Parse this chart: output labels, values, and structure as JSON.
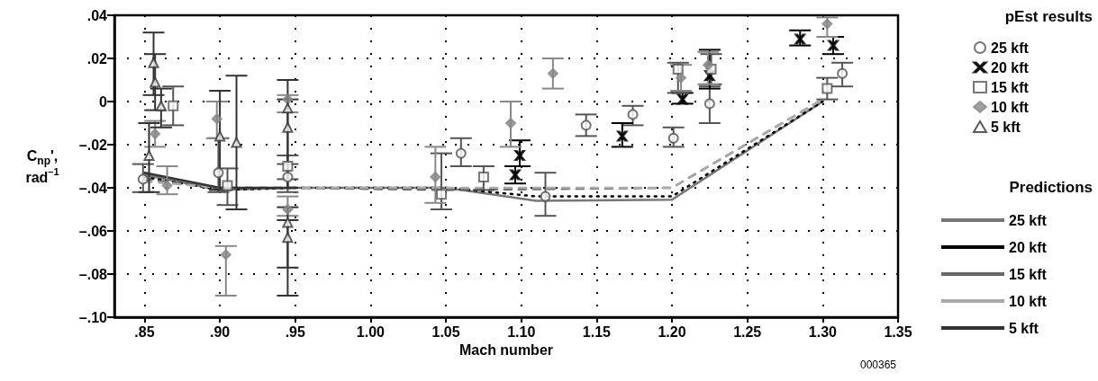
{
  "chart_data": {
    "type": "scatter",
    "xlabel": "Mach number",
    "ylabel": "C$_{np}$', rad$^{–1}$",
    "legend_title": "pEst results",
    "annotations": [
      "Predictions",
      "000365"
    ],
    "xlim": [
      0.83,
      1.35
    ],
    "ylim": [
      -0.1,
      0.04
    ],
    "xticks": [
      {
        "value": 0.85,
        "label": ".85"
      },
      {
        "value": 0.9,
        "label": ".90"
      },
      {
        "value": 0.95,
        "label": ".95"
      },
      {
        "value": 1,
        "label": "1.00"
      },
      {
        "value": 1.05,
        "label": "1.05"
      },
      {
        "value": 1.1,
        "label": "1.10"
      },
      {
        "value": 1.15,
        "label": "1.15"
      },
      {
        "value": 1.2,
        "label": "1.20"
      },
      {
        "value": 1.25,
        "label": "1.25"
      },
      {
        "value": 1.3,
        "label": "1.30"
      },
      {
        "value": 1.35,
        "label": "1.35"
      }
    ],
    "yticks": [
      {
        "value": 0.04,
        "label": ".04"
      },
      {
        "value": 0.02,
        "label": ".02"
      },
      0,
      {
        "value": -0.02,
        "label": "–.02"
      },
      {
        "value": -0.04,
        "label": "–.04"
      },
      {
        "value": -0.06,
        "label": "–.06"
      },
      {
        "value": -0.08,
        "label": "–.08"
      },
      {
        "value": -0.1,
        "label": "–.10"
      }
    ],
    "grid": true,
    "legend": "right",
    "series": [
      {
        "name": "25 kft",
        "type": "scatter",
        "marker": "circle",
        "color": "#555555",
        "x": [
          0.849,
          0.899,
          0.945,
          1.06,
          1.116,
          1.143,
          1.174,
          1.201,
          1.225,
          1.313
        ],
        "values": [
          -0.036,
          -0.033,
          -0.035,
          -0.024,
          -0.044,
          -0.011,
          -0.006,
          -0.017,
          -0.001,
          0.013
        ],
        "errors": [
          [
            -0.042,
            -0.029
          ],
          [
            -0.042,
            -0.017
          ],
          [
            -0.042,
            -0.029
          ],
          [
            -0.03,
            -0.017
          ],
          [
            -0.053,
            -0.033
          ],
          [
            -0.016,
            -0.006
          ],
          [
            -0.011,
            -0.002
          ],
          [
            -0.021,
            -0.012
          ],
          [
            -0.01,
            0.007
          ],
          [
            0.007,
            0.018
          ]
        ]
      },
      {
        "name": "20 kft",
        "type": "scatter",
        "marker": "cross",
        "color": "#000000",
        "x": [
          1.096,
          1.099,
          1.167,
          1.207,
          1.225,
          1.285,
          1.307
        ],
        "values": [
          -0.034,
          -0.025,
          -0.016,
          0.001,
          0.012,
          0.029,
          0.026
        ],
        "errors": [
          [
            -0.038,
            -0.03
          ],
          [
            -0.03,
            -0.018
          ],
          [
            -0.021,
            -0.01
          ],
          [
            -0.001,
            0.004
          ],
          [
            0.006,
            0.024
          ],
          [
            0.026,
            0.033
          ],
          [
            0.022,
            0.03
          ]
        ]
      },
      {
        "name": "15 kft",
        "type": "scatter",
        "marker": "square",
        "color": "#555555",
        "x": [
          0.869,
          0.905,
          0.945,
          1.047,
          1.075,
          1.204,
          1.226,
          1.303
        ],
        "values": [
          -0.002,
          -0.039,
          -0.03,
          -0.043,
          -0.035,
          0.015,
          0.015,
          0.006
        ],
        "errors": [
          [
            -0.011,
            0.007
          ],
          [
            -0.048,
            -0.031
          ],
          [
            -0.036,
            -0.025
          ],
          [
            -0.05,
            -0.024
          ],
          [
            -0.041,
            -0.03
          ],
          [
            0.004,
            0.018
          ],
          [
            0.008,
            0.022
          ],
          [
            0.001,
            0.011
          ]
        ]
      },
      {
        "name": "10 kft",
        "type": "scatter",
        "marker": "diamond",
        "color": "#888888",
        "x": [
          0.857,
          0.865,
          0.898,
          0.904,
          0.945,
          0.945,
          1.043,
          1.093,
          1.121,
          1.206,
          1.224,
          1.303
        ],
        "values": [
          -0.015,
          -0.039,
          -0.008,
          -0.071,
          0.001,
          -0.05,
          -0.035,
          -0.01,
          0.013,
          0.011,
          0.017,
          0.036
        ],
        "errors": [
          [
            -0.021,
            -0.009
          ],
          [
            -0.043,
            -0.03
          ],
          [
            -0.017,
            0
          ],
          [
            -0.09,
            -0.067
          ],
          [
            -0.005,
            0.003
          ],
          [
            -0.053,
            -0.044
          ],
          [
            -0.047,
            -0.021
          ],
          [
            -0.021,
            0
          ],
          [
            0.006,
            0.02
          ],
          [
            0.005,
            0.017
          ],
          [
            0.008,
            0.023
          ],
          [
            0.03,
            0.039
          ]
        ]
      },
      {
        "name": "5 kft",
        "type": "scatter",
        "marker": "triangle",
        "color": "#333333",
        "x": [
          0.856,
          0.857,
          0.861,
          0.853,
          0.9,
          0.911,
          0.945,
          0.945,
          0.945,
          0.945
        ],
        "values": [
          0.018,
          0.009,
          -0.002,
          -0.025,
          -0.016,
          -0.019,
          -0.003,
          -0.012,
          -0.056,
          -0.063
        ],
        "errors": [
          [
            0.003,
            0.032
          ],
          [
            -0.004,
            0.022
          ],
          [
            -0.012,
            0.006
          ],
          [
            -0.042,
            -0.01
          ],
          [
            -0.041,
            0.005
          ],
          [
            -0.05,
            0.012
          ],
          [
            -0.04,
            0.01
          ],
          [
            -0.04,
            0.001
          ],
          [
            -0.077,
            -0.049
          ],
          [
            -0.09,
            -0.055
          ]
        ]
      },
      {
        "name": "25 kft",
        "type": "line",
        "line_style": "solid",
        "marker": "none",
        "color": "#777777",
        "x": [
          0.85,
          0.9,
          0.95,
          1.05,
          1.11,
          1.2,
          1.3
        ],
        "values": [
          -0.034,
          -0.041,
          -0.04,
          -0.04,
          -0.046,
          -0.0455,
          0
        ]
      },
      {
        "name": "20 kft",
        "type": "line",
        "line_style": "dotted",
        "marker": "none",
        "color": "#000000",
        "x": [
          0.85,
          0.9,
          0.95,
          1.05,
          1.11,
          1.2,
          1.3
        ],
        "values": [
          -0.035,
          -0.041,
          -0.04,
          -0.04,
          -0.044,
          -0.044,
          0
        ]
      },
      {
        "name": "15 kft",
        "type": "line",
        "line_style": "dashed",
        "marker": "none",
        "color": "#666666",
        "x": [
          0.85,
          0.9,
          0.95,
          1.05,
          1.2,
          1.3
        ],
        "values": [
          -0.036,
          -0.04,
          -0.04,
          -0.041,
          -0.04,
          0.001
        ]
      },
      {
        "name": "10 kft",
        "type": "line",
        "line_style": "dashed",
        "marker": "none",
        "color": "#aaaaaa",
        "x": [
          0.85,
          0.9,
          0.95,
          1.05,
          1.2,
          1.3
        ],
        "values": [
          -0.037,
          -0.04,
          -0.04,
          -0.04,
          -0.04,
          0.001
        ]
      },
      {
        "name": "5 kft",
        "type": "line",
        "line_style": "solid",
        "marker": "none",
        "color": "#333333",
        "x": [
          0.85,
          0.9,
          0.95
        ],
        "values": [
          -0.033,
          -0.04,
          -0.04
        ]
      }
    ]
  }
}
